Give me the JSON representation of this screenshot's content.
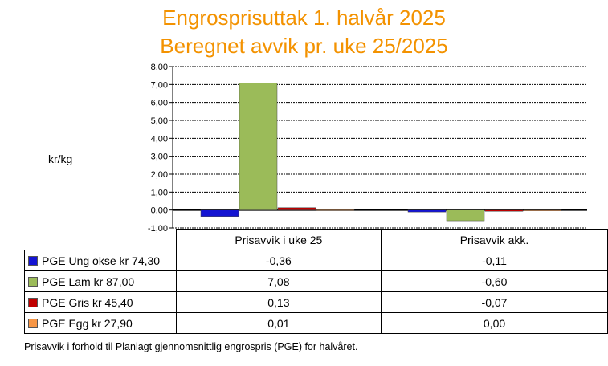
{
  "chart_data": {
    "type": "bar",
    "title": "Engrosprisuttak 1. halvår 2025",
    "subtitle": "Beregnet avvik pr. uke 25/2025",
    "ylabel": "kr/kg",
    "ylim": [
      -1,
      8
    ],
    "yticks": [
      "-1,00",
      "0,00",
      "1,00",
      "2,00",
      "3,00",
      "4,00",
      "5,00",
      "6,00",
      "7,00",
      "8,00"
    ],
    "grid": true,
    "categories": [
      "Prisavvik i uke 25",
      "Prisavvik akk."
    ],
    "series": [
      {
        "name": "PGE Ung okse kr 74,30",
        "color": "#1414d2",
        "values": [
          -0.36,
          -0.11
        ],
        "labels": [
          "-0,36",
          "-0,11"
        ]
      },
      {
        "name": "PGE Lam kr 87,00",
        "color": "#9bbb59",
        "values": [
          7.08,
          -0.6
        ],
        "labels": [
          "7,08",
          "-0,60"
        ]
      },
      {
        "name": "PGE Gris kr 45,40",
        "color": "#c00000",
        "values": [
          0.13,
          -0.07
        ],
        "labels": [
          "0,13",
          "-0,07"
        ]
      },
      {
        "name": "PGE Egg kr 27,90",
        "color": "#f79646",
        "values": [
          0.01,
          0.0
        ],
        "labels": [
          "0,01",
          "0,00"
        ]
      }
    ]
  },
  "footnote": "Prisavvik i forhold til Planlagt gjennomsnittlig engrospris (PGE) for halvåret."
}
